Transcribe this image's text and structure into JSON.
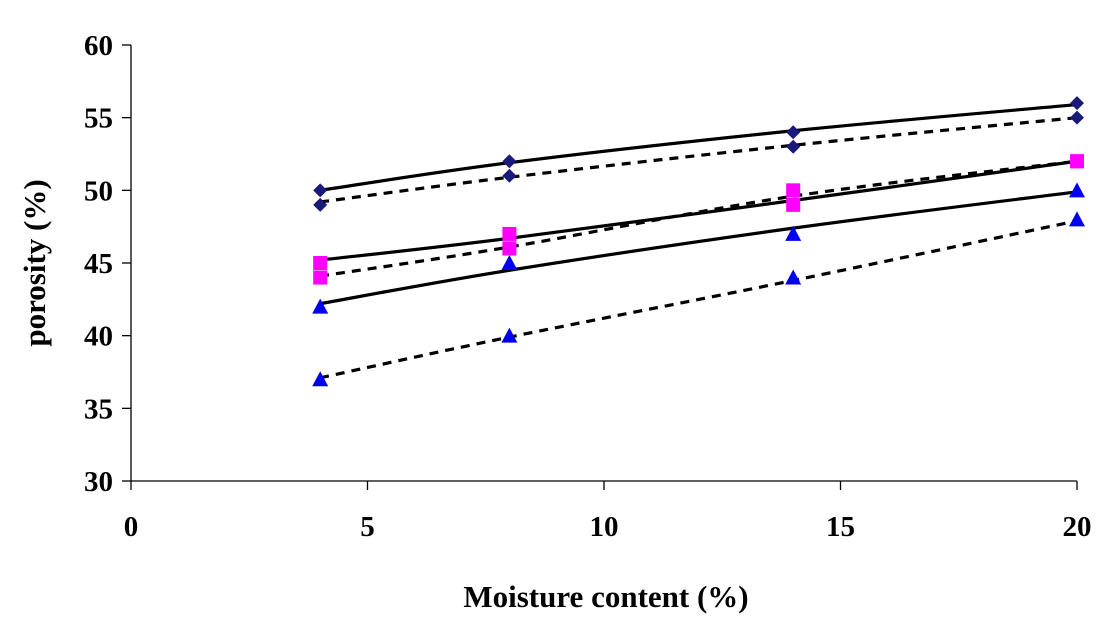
{
  "chart_data": {
    "type": "scatter",
    "title": "",
    "xlabel": "Moisture content (%)",
    "ylabel": "porosity (%)",
    "xlim": [
      0,
      20
    ],
    "ylim": [
      30,
      60
    ],
    "x_ticks": [
      0,
      5,
      10,
      15,
      20
    ],
    "y_ticks": [
      30,
      35,
      40,
      45,
      50,
      55,
      60
    ],
    "grid": false,
    "legend": "none",
    "series": [
      {
        "marker": "diamond",
        "color": "#1a1a7a",
        "points": [
          {
            "x": 4,
            "y": 50
          },
          {
            "x": 8,
            "y": 52
          },
          {
            "x": 14,
            "y": 54
          },
          {
            "x": 20,
            "y": 56
          },
          {
            "x": 4,
            "y": 49
          },
          {
            "x": 8,
            "y": 51
          },
          {
            "x": 14,
            "y": 53
          },
          {
            "x": 20,
            "y": 55
          }
        ]
      },
      {
        "marker": "square",
        "color": "#ff00ff",
        "points": [
          {
            "x": 4,
            "y": 45
          },
          {
            "x": 8,
            "y": 47
          },
          {
            "x": 14,
            "y": 50
          },
          {
            "x": 20,
            "y": 52
          },
          {
            "x": 4,
            "y": 44
          },
          {
            "x": 8,
            "y": 46
          },
          {
            "x": 14,
            "y": 49
          },
          {
            "x": 20,
            "y": 52
          }
        ]
      },
      {
        "marker": "triangle",
        "color": "#0000ee",
        "points": [
          {
            "x": 4,
            "y": 42
          },
          {
            "x": 8,
            "y": 45
          },
          {
            "x": 14,
            "y": 47
          },
          {
            "x": 20,
            "y": 50
          },
          {
            "x": 4,
            "y": 37
          },
          {
            "x": 8,
            "y": 40
          },
          {
            "x": 14,
            "y": 44
          },
          {
            "x": 20,
            "y": 48
          }
        ]
      }
    ],
    "trend_lines": [
      {
        "style": "solid",
        "x": [
          4,
          8,
          14,
          20
        ],
        "y": [
          50,
          51.9,
          54.1,
          55.9
        ]
      },
      {
        "style": "dashed",
        "x": [
          4,
          8,
          14,
          20
        ],
        "y": [
          49.2,
          50.9,
          53.1,
          55
        ]
      },
      {
        "style": "solid",
        "x": [
          4,
          8,
          14,
          20
        ],
        "y": [
          45.2,
          46.7,
          49.3,
          52
        ]
      },
      {
        "style": "dashed",
        "x": [
          4,
          8,
          14,
          20
        ],
        "y": [
          44.1,
          46.1,
          49.6,
          52
        ]
      },
      {
        "style": "solid",
        "x": [
          4,
          8,
          14,
          20
        ],
        "y": [
          42.2,
          44.5,
          47.4,
          49.9
        ]
      },
      {
        "style": "dashed",
        "x": [
          4,
          8,
          14,
          20
        ],
        "y": [
          37.1,
          39.9,
          43.8,
          47.9
        ]
      }
    ]
  }
}
